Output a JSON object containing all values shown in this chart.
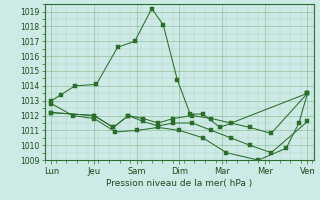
{
  "xlabel": "Pression niveau de la mer( hPa )",
  "ylim": [
    1009,
    1019.5
  ],
  "yticks": [
    1009,
    1010,
    1011,
    1012,
    1013,
    1014,
    1015,
    1016,
    1017,
    1018,
    1019
  ],
  "xtick_labels": [
    "Lun",
    "Jeu",
    "Sam",
    "Dim",
    "Mar",
    "Mer",
    "Ven"
  ],
  "xtick_positions": [
    0,
    1,
    2,
    3,
    4,
    5,
    6
  ],
  "xlim": [
    -0.15,
    6.15
  ],
  "background_color": "#ceeae7",
  "grid_color": "#7aad7a",
  "line_color": "#2a6e2a",
  "lines": [
    {
      "x": [
        0.0,
        0.22,
        0.55,
        1.05,
        1.55,
        1.95,
        2.35,
        2.62,
        2.95,
        3.25,
        3.55,
        3.95,
        6.0
      ],
      "y": [
        1013.0,
        1013.4,
        1014.0,
        1014.1,
        1016.6,
        1017.0,
        1019.2,
        1018.1,
        1014.4,
        1012.1,
        1012.1,
        1011.2,
        1013.5
      ]
    },
    {
      "x": [
        0.0,
        1.0,
        1.45,
        1.8,
        2.15,
        2.5,
        2.85,
        3.3,
        3.75,
        4.2,
        4.65,
        5.15,
        6.0
      ],
      "y": [
        1012.2,
        1012.0,
        1011.2,
        1012.0,
        1011.8,
        1011.5,
        1011.8,
        1012.0,
        1011.8,
        1011.5,
        1011.2,
        1010.8,
        1013.5
      ]
    },
    {
      "x": [
        0.0,
        1.0,
        1.45,
        1.8,
        2.15,
        2.5,
        2.85,
        3.3,
        3.75,
        4.2,
        4.65,
        5.15,
        6.0
      ],
      "y": [
        1012.2,
        1012.0,
        1011.2,
        1012.0,
        1011.6,
        1011.3,
        1011.5,
        1011.5,
        1011.0,
        1010.5,
        1010.0,
        1009.5,
        1011.6
      ]
    },
    {
      "x": [
        0.0,
        0.5,
        1.0,
        1.5,
        2.0,
        2.5,
        3.0,
        3.55,
        4.1,
        4.85,
        5.5,
        5.8,
        6.0
      ],
      "y": [
        1012.8,
        1012.0,
        1011.8,
        1010.9,
        1011.0,
        1011.2,
        1011.0,
        1010.5,
        1009.5,
        1009.0,
        1009.8,
        1011.5,
        1013.5
      ]
    }
  ]
}
